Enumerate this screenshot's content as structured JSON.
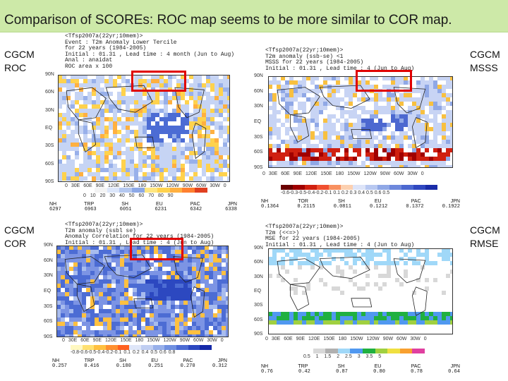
{
  "title": "Comparison of SCOREs: ROC map seems to be  more similar to COR map.",
  "panels": {
    "roc": {
      "label": "CGCM\nROC",
      "header": "<Tfsp2007a(22yr;10mem)>\nEvent : T2m Anomaly Lower Tercile\nfor 22 years (1984-2005)\nInitial : 01.31 , Lead time : 4 month (Jun to Aug)\nAnal : anaidat\nROC area x 100",
      "lats": [
        "90N",
        "60N",
        "30N",
        "EQ",
        "30S",
        "60S",
        "90S"
      ],
      "lons": "0  30E 60E 90E 120E 150E 180 150W 120W 90W 60W 30W 0",
      "cbar_ticks": "0   10  20  30  40  50  60  70  80  90",
      "stat_names": [
        "NH",
        "TRP",
        "SH",
        "EU",
        "PAC",
        "JPN"
      ],
      "stat_values": [
        "6297",
        "6963",
        "6051",
        "6231",
        "6342",
        "6338"
      ]
    },
    "msss": {
      "label": "CGCM\nMSSS",
      "header": "<Tfsp2007a(22yr;10mem)>\nT2m anomaly (ssb-se) <1\nMSSS for 22 years (1984-2005)\nInitial : 01.31 , Lead time : 4 (Jun to Aug)",
      "lats": [
        "90N",
        "60N",
        "30N",
        "EQ",
        "30S",
        "60S",
        "90S"
      ],
      "lons": "0  30E 60E 90E 120E 150E 180 150W 120W 90W 60W 30W 0",
      "cbar_ticks": "-0.6-0.3-0.5-0.4-0.2-0.1  0.1  0.2  0.3  0.4  0.5  0.6  0.5",
      "stat_names": [
        "NH",
        "TOR",
        "SH",
        "EU",
        "PAC",
        "JPN"
      ],
      "stat_values": [
        "0.1364",
        "0.2115",
        "0.0811",
        "0.1212",
        "0.1372",
        "0.1922"
      ]
    },
    "cor": {
      "label": "CGCM\nCOR",
      "header": "<Tfsp2007a(22yr;10mem)>\nT2m anomaly (ssbl se)\nAnomaly Correlation for 22 years (1984-2005)\nInitial : 01.31 , Lead time : 4 (Jun to Aug)",
      "lats": [
        "90N",
        "60N",
        "30N",
        "EQ",
        "30S",
        "60S",
        "90S"
      ],
      "lons": "0  30E 60E 90E 120E 150E 180 150W 120W 90W 60W 30W 0",
      "cbar_ticks": "-0.8-0.6-0.5-0.4-0.2-0.1  0.1  0.2  0.4  0.5  0.6  0.8",
      "stat_names": [
        "NH",
        "TRP",
        "SH",
        "EU",
        "PAC",
        "JPN"
      ],
      "stat_values": [
        "0.257",
        "0.416",
        "0.180",
        "0.251",
        "0.270",
        "0.312"
      ]
    },
    "rmse": {
      "label": "CGCM\nRMSE",
      "header": "<Tfsp2007a(22yr;10mem)>\nT2m (<<=>)\nMSE for 22 years (1984-2005)\nInitial : 01.31 , Lead time : 4 (Jun to Aug)",
      "lats": [
        "90N",
        "60N",
        "30N",
        "EQ",
        "30S",
        "60S",
        "90S"
      ],
      "lons": "0  30E 60E 90E 120E 150E 180 150W 120W 90W 60W 30W 0",
      "cbar_ticks": "0.5   1   1.5   2   2.5   3   3.5   5",
      "stat_names": [
        "NH",
        "TRP",
        "SH",
        "EU",
        "PAC",
        "JPN"
      ],
      "stat_values": [
        "0.76",
        "0.42",
        "0.87",
        "0.80",
        "0.78",
        "0.64"
      ]
    }
  },
  "colors": {
    "title_bg": "#cde9a8",
    "highlight": "#e00000",
    "roc_scale": [
      "#ffffff",
      "#f4f4f4",
      "#dce6fa",
      "#b4c8f0",
      "#8ca8e6",
      "#ffe680",
      "#ffd24d",
      "#ffb040",
      "#ff8030",
      "#e04020"
    ],
    "msss_scale": [
      "#6a0000",
      "#a00000",
      "#d02010",
      "#f05030",
      "#f89060",
      "#fcd0b0",
      "#dde4f8",
      "#b8c8f0",
      "#90a8e6",
      "#6e88dc",
      "#4c68d0",
      "#3048c0",
      "#1a2ca8"
    ],
    "cor_scale": [
      "#fff8c0",
      "#ffe070",
      "#ffc040",
      "#ff9030",
      "#ff6020",
      "#dfe6f8",
      "#c0cef2",
      "#98b0ea",
      "#7090e0",
      "#4c6cd4",
      "#2c48c0",
      "#1428a8"
    ],
    "rmse_scale": [
      "#ffffff",
      "#d8d8d8",
      "#b0b0b0",
      "#a0d8f8",
      "#5098f0",
      "#20b040",
      "#a0d040",
      "#f0e040",
      "#f8a030",
      "#e040a0"
    ]
  }
}
